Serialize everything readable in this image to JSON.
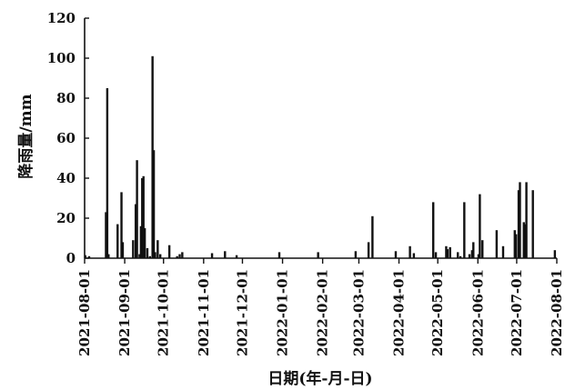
{
  "chart_data": {
    "type": "bar",
    "title": "",
    "xlabel": "日期(年-月-日)",
    "ylabel": "降雨量/mm",
    "ylim": [
      0,
      120
    ],
    "yticks": [
      "0",
      "20",
      "40",
      "60",
      "80",
      "100",
      "120"
    ],
    "xlim": [
      "2021-08-01",
      "2022-08-01"
    ],
    "xticks": [
      "2021-08-01",
      "2021-09-01",
      "2021-10-01",
      "2021-11-01",
      "2021-12-01",
      "2022-01-01",
      "2022-02-01",
      "2022-03-01",
      "2022-04-01",
      "2022-05-01",
      "2022-06-01",
      "2022-07-01",
      "2022-08-01"
    ],
    "grid": false,
    "color": "#111111",
    "series": [
      {
        "points": [
          [
            "2021-08-01",
            1.5
          ],
          [
            "2021-08-04",
            1
          ],
          [
            "2021-08-17",
            23
          ],
          [
            "2021-08-18",
            85
          ],
          [
            "2021-08-19",
            2
          ],
          [
            "2021-08-26",
            17
          ],
          [
            "2021-08-29",
            33
          ],
          [
            "2021-08-30",
            8
          ],
          [
            "2021-09-07",
            9
          ],
          [
            "2021-09-09",
            27
          ],
          [
            "2021-09-10",
            49
          ],
          [
            "2021-09-12",
            2
          ],
          [
            "2021-09-13",
            16
          ],
          [
            "2021-09-14",
            40
          ],
          [
            "2021-09-15",
            41
          ],
          [
            "2021-09-16",
            15
          ],
          [
            "2021-09-18",
            5
          ],
          [
            "2021-09-20",
            1
          ],
          [
            "2021-09-22",
            101
          ],
          [
            "2021-09-23",
            54
          ],
          [
            "2021-09-24",
            3
          ],
          [
            "2021-09-26",
            9
          ],
          [
            "2021-09-28",
            2
          ],
          [
            "2021-10-05",
            6.5
          ],
          [
            "2021-10-11",
            1
          ],
          [
            "2021-10-13",
            2
          ],
          [
            "2021-10-15",
            3
          ],
          [
            "2021-11-07",
            2.5
          ],
          [
            "2021-11-17",
            3.5
          ],
          [
            "2021-11-26",
            1.5
          ],
          [
            "2021-12-29",
            3
          ],
          [
            "2022-01-28",
            3
          ],
          [
            "2022-02-26",
            3.5
          ],
          [
            "2022-03-08",
            8
          ],
          [
            "2022-03-11",
            21
          ],
          [
            "2022-03-29",
            3.5
          ],
          [
            "2022-04-09",
            6
          ],
          [
            "2022-04-12",
            2.5
          ],
          [
            "2022-04-27",
            28
          ],
          [
            "2022-04-29",
            3
          ],
          [
            "2022-05-07",
            6
          ],
          [
            "2022-05-08",
            4.5
          ],
          [
            "2022-05-10",
            5.5
          ],
          [
            "2022-05-16",
            3
          ],
          [
            "2022-05-18",
            1
          ],
          [
            "2022-05-21",
            28
          ],
          [
            "2022-05-25",
            2
          ],
          [
            "2022-05-27",
            4
          ],
          [
            "2022-05-28",
            8
          ],
          [
            "2022-06-01",
            2
          ],
          [
            "2022-06-02",
            32
          ],
          [
            "2022-06-04",
            9
          ],
          [
            "2022-06-15",
            14
          ],
          [
            "2022-06-20",
            6
          ],
          [
            "2022-06-29",
            14
          ],
          [
            "2022-06-30",
            12
          ],
          [
            "2022-07-02",
            34
          ],
          [
            "2022-07-03",
            38
          ],
          [
            "2022-07-06",
            18
          ],
          [
            "2022-07-07",
            17
          ],
          [
            "2022-07-08",
            38
          ],
          [
            "2022-07-13",
            34
          ],
          [
            "2022-07-30",
            4
          ]
        ]
      }
    ]
  }
}
